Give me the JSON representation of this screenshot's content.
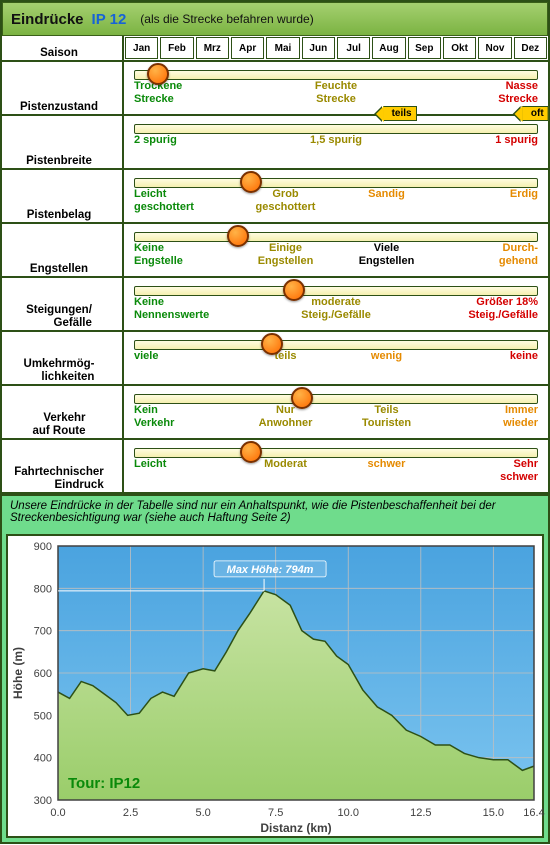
{
  "header": {
    "title_prefix": "Eindrücke",
    "ip": "IP 12",
    "subtitle": "(als die Strecke befahren wurde)"
  },
  "months_label": "Saison",
  "months": [
    "Jan",
    "Feb",
    "Mrz",
    "Apr",
    "Mai",
    "Jun",
    "Jul",
    "Aug",
    "Sep",
    "Okt",
    "Nov",
    "Dez"
  ],
  "rows": [
    {
      "label": "Pistenzustand",
      "marker_pct": 8,
      "options": [
        {
          "text": "Trockene\nStrecke",
          "color": "c-green",
          "align": "l"
        },
        {
          "text": "Feuchte\nStrecke",
          "color": "c-olive",
          "align": ""
        },
        {
          "text": "Nasse\nStrecke",
          "color": "c-red",
          "align": "r"
        }
      ]
    },
    {
      "label": "Pistenbreite",
      "marker_pct": null,
      "tags": [
        {
          "text": "teils",
          "pct": 65
        },
        {
          "text": "oft",
          "pct": 97
        }
      ],
      "options": [
        {
          "text": "2 spurig",
          "color": "c-green",
          "align": "l"
        },
        {
          "text": "1,5 spurig",
          "color": "c-olive",
          "align": ""
        },
        {
          "text": "1 spurig",
          "color": "c-red",
          "align": "r"
        }
      ]
    },
    {
      "label": "Pistenbelag",
      "marker_pct": 30,
      "options": [
        {
          "text": "Leicht\ngeschottert",
          "color": "c-green",
          "align": "l"
        },
        {
          "text": "Grob\ngeschottert",
          "color": "c-olive",
          "align": ""
        },
        {
          "text": "Sandig",
          "color": "c-orange",
          "align": ""
        },
        {
          "text": "Erdig",
          "color": "c-orange",
          "align": "r"
        }
      ]
    },
    {
      "label": "Engstellen",
      "marker_pct": 27,
      "options": [
        {
          "text": "Keine\nEngstelle",
          "color": "c-green",
          "align": "l"
        },
        {
          "text": "Einige\nEngstellen",
          "color": "c-olive",
          "align": ""
        },
        {
          "text": "Viele\nEngstellen",
          "color": "c-black",
          "align": ""
        },
        {
          "text": "Durch-\ngehend",
          "color": "c-orange",
          "align": "r"
        }
      ]
    },
    {
      "label": "Steigungen/\nGefälle",
      "marker_pct": 40,
      "options": [
        {
          "text": "Keine\nNennenswerte",
          "color": "c-green",
          "align": "l"
        },
        {
          "text": "moderate\nSteig./Gefälle",
          "color": "c-olive",
          "align": ""
        },
        {
          "text": "Größer 18%\nSteig./Gefälle",
          "color": "c-red",
          "align": "r"
        }
      ]
    },
    {
      "label": "Umkehrmög-\nlichkeiten",
      "marker_pct": 35,
      "options": [
        {
          "text": "viele",
          "color": "c-green",
          "align": "l"
        },
        {
          "text": "teils",
          "color": "c-olive",
          "align": ""
        },
        {
          "text": "wenig",
          "color": "c-orange",
          "align": ""
        },
        {
          "text": "keine",
          "color": "c-red",
          "align": "r"
        }
      ]
    },
    {
      "label": "Verkehr\nauf Route",
      "marker_pct": 42,
      "options": [
        {
          "text": "Kein\nVerkehr",
          "color": "c-green",
          "align": "l"
        },
        {
          "text": "Nur\nAnwohner",
          "color": "c-olive",
          "align": ""
        },
        {
          "text": "Teils\nTouristen",
          "color": "c-olive",
          "align": ""
        },
        {
          "text": "Immer\nwieder",
          "color": "c-orange",
          "align": "r"
        }
      ]
    },
    {
      "label": "Fahrtechnischer\nEindruck",
      "marker_pct": 30,
      "options": [
        {
          "text": "Leicht",
          "color": "c-green",
          "align": "l"
        },
        {
          "text": "Moderat",
          "color": "c-olive",
          "align": ""
        },
        {
          "text": "schwer",
          "color": "c-orange",
          "align": ""
        },
        {
          "text": "Sehr\nschwer",
          "color": "c-red",
          "align": "r"
        }
      ]
    }
  ],
  "note": "Unsere Eindrücke in der Tabelle sind nur ein Anhaltspunkt, wie die Pistenbeschaffenheit bei der Streckenbesichtigung war (siehe auch Haftung Seite 2)",
  "chart": {
    "type": "area",
    "x_label": "Distanz   (km)",
    "y_label": "Höhe   (m)",
    "tour_label": "Tour: IP12",
    "max_label": "Max Höhe: 794m",
    "max_x": 7.1,
    "max_y": 794,
    "xlim": [
      0.0,
      16.4
    ],
    "ylim": [
      300,
      900
    ],
    "xtick_step": 2.5,
    "xtick_last": 16.4,
    "ytick_step": 100,
    "background_sky": "#4aa3df",
    "background_sky2": "#7bc4ef",
    "area_fill": "#9acd6a",
    "area_fill2": "#c7e3a2",
    "line_color": "#2d5016",
    "grid_color": "#bfbfbf",
    "axis_color": "#404040",
    "tour_label_color": "#0a8a0a",
    "max_label_color": "#ffffff",
    "title_fontsize_pt": 11,
    "tick_fontsize_pt": 10,
    "data": [
      [
        0.0,
        555
      ],
      [
        0.4,
        540
      ],
      [
        0.8,
        580
      ],
      [
        1.2,
        570
      ],
      [
        1.6,
        550
      ],
      [
        2.0,
        530
      ],
      [
        2.4,
        500
      ],
      [
        2.8,
        505
      ],
      [
        3.2,
        540
      ],
      [
        3.6,
        555
      ],
      [
        4.0,
        545
      ],
      [
        4.5,
        600
      ],
      [
        5.0,
        610
      ],
      [
        5.4,
        605
      ],
      [
        5.8,
        650
      ],
      [
        6.2,
        700
      ],
      [
        6.6,
        740
      ],
      [
        7.1,
        794
      ],
      [
        7.5,
        785
      ],
      [
        8.0,
        760
      ],
      [
        8.4,
        700
      ],
      [
        8.8,
        680
      ],
      [
        9.2,
        675
      ],
      [
        9.6,
        640
      ],
      [
        10.0,
        620
      ],
      [
        10.5,
        560
      ],
      [
        11.0,
        520
      ],
      [
        11.5,
        500
      ],
      [
        12.0,
        465
      ],
      [
        12.5,
        450
      ],
      [
        13.0,
        430
      ],
      [
        13.5,
        430
      ],
      [
        14.0,
        410
      ],
      [
        14.5,
        400
      ],
      [
        15.0,
        395
      ],
      [
        15.5,
        395
      ],
      [
        16.0,
        370
      ],
      [
        16.4,
        380
      ]
    ]
  }
}
